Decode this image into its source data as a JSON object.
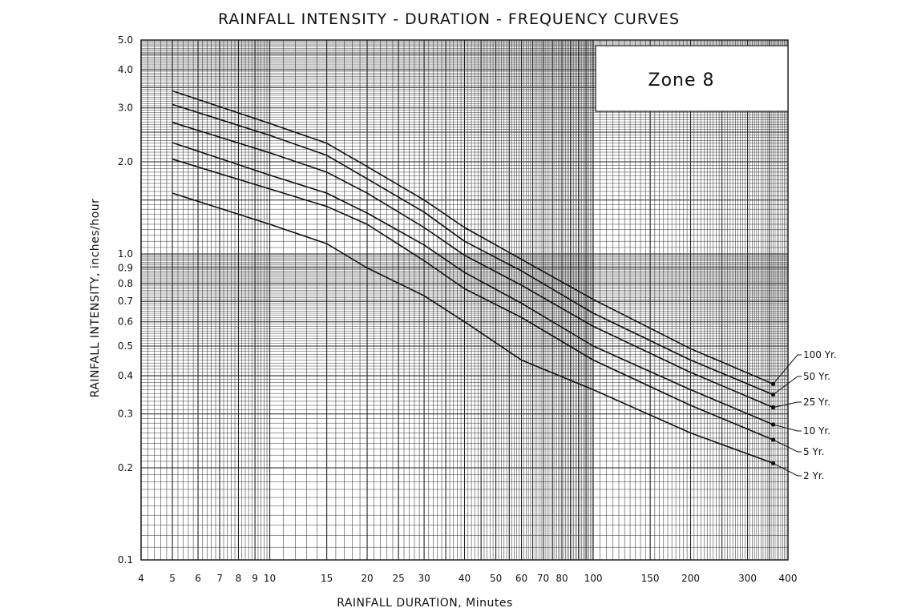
{
  "chart_data": {
    "type": "line",
    "title": "RAINFALL INTENSITY - DURATION - FREQUENCY CURVES",
    "xlabel": "RAINFALL DURATION, Minutes",
    "ylabel": "RAINFALL INTENSITY, inches/hour",
    "annotation": "Zone 8",
    "xscale": "log",
    "yscale": "log",
    "xlim": [
      4,
      400
    ],
    "ylim": [
      0.1,
      5.0
    ],
    "grid": true,
    "legend_placement": "right",
    "x_ticks": [
      "4",
      "5",
      "6",
      "7",
      "8",
      "9",
      "10",
      "15",
      "20",
      "25",
      "30",
      "40",
      "50",
      "60",
      "70",
      "80",
      "100",
      "150",
      "200",
      "300",
      "400"
    ],
    "y_ticks": [
      "0.1",
      "0.2",
      "0.3",
      "0.4",
      "0.5",
      "0.6",
      "0.7",
      "0.8",
      "0.9",
      "1.0",
      "2.0",
      "3.0",
      "4.0",
      "5.0"
    ],
    "x": [
      5,
      10,
      15,
      20,
      30,
      40,
      60,
      100,
      200,
      360
    ],
    "series": [
      {
        "name": "100 Yr.",
        "values": [
          3.41,
          2.67,
          2.3,
          1.93,
          1.5,
          1.22,
          0.96,
          0.71,
          0.49,
          0.376
        ]
      },
      {
        "name": "50 Yr.",
        "values": [
          3.08,
          2.44,
          2.1,
          1.76,
          1.37,
          1.1,
          0.88,
          0.64,
          0.45,
          0.347
        ]
      },
      {
        "name": "25 Yr.",
        "values": [
          2.69,
          2.14,
          1.85,
          1.58,
          1.22,
          0.99,
          0.79,
          0.58,
          0.41,
          0.315
        ]
      },
      {
        "name": "10 Yr.",
        "values": [
          2.31,
          1.81,
          1.58,
          1.36,
          1.07,
          0.87,
          0.69,
          0.5,
          0.36,
          0.277
        ]
      },
      {
        "name": "5 Yr.",
        "values": [
          2.04,
          1.63,
          1.43,
          1.25,
          0.95,
          0.77,
          0.62,
          0.45,
          0.32,
          0.247
        ]
      },
      {
        "name": "2 Yr.",
        "values": [
          1.58,
          1.25,
          1.08,
          0.9,
          0.73,
          0.6,
          0.45,
          0.36,
          0.26,
          0.207
        ]
      }
    ],
    "colors": {
      "line": "#111111",
      "grid": "#222222",
      "background": "#ffffff"
    }
  }
}
